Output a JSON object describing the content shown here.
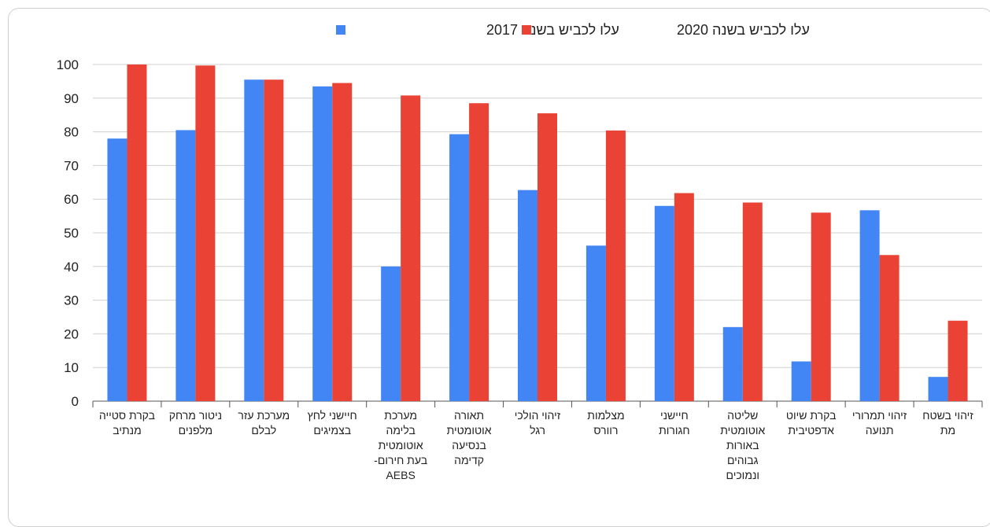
{
  "chart_data": {
    "type": "bar",
    "title": "",
    "xlabel": "",
    "ylabel": "",
    "ylim": [
      0,
      100
    ],
    "yticks": [
      0,
      10,
      20,
      30,
      40,
      50,
      60,
      70,
      80,
      90,
      100
    ],
    "grid": true,
    "legend_position": "top",
    "categories": [
      [
        "בקרת סטייה",
        "מנתיב"
      ],
      [
        "ניטור מרחק",
        "מלפנים"
      ],
      [
        "מערכת עזר",
        "לבלם"
      ],
      [
        "חיישני לחץ",
        "בצמיגים"
      ],
      [
        "מערכת",
        "בלימה",
        "אוטומטית",
        "בעת חירום-",
        "AEBS"
      ],
      [
        "תאורה",
        "אוטומטית",
        "בנסיעה",
        "קדימה"
      ],
      [
        "זיהוי הולכי",
        "רגל"
      ],
      [
        "מצלמות",
        "רוורס"
      ],
      [
        "חיישני",
        "חגורות"
      ],
      [
        "שליטה",
        "אוטומטית",
        "באורות",
        "גבוהים",
        "ונמוכים"
      ],
      [
        "בקרת שיוט",
        "אדפטיבית"
      ],
      [
        "זיהוי תמרורי",
        "תנועה"
      ],
      [
        "זיהוי בשטח",
        "מת"
      ]
    ],
    "series": [
      {
        "name": "עלו לכביש בשנה 2017",
        "color": "#4285f4",
        "values": [
          78,
          80.5,
          95.5,
          93.5,
          40,
          79.3,
          62.7,
          46.2,
          58,
          22,
          11.8,
          56.7,
          7.2
        ]
      },
      {
        "name": "עלו לכביש בשנה 2020",
        "color": "#ea4335",
        "values": [
          100,
          99.7,
          95.5,
          94.5,
          90.8,
          88.5,
          85.5,
          80.4,
          61.8,
          59,
          56,
          43.4,
          23.9
        ]
      }
    ]
  }
}
